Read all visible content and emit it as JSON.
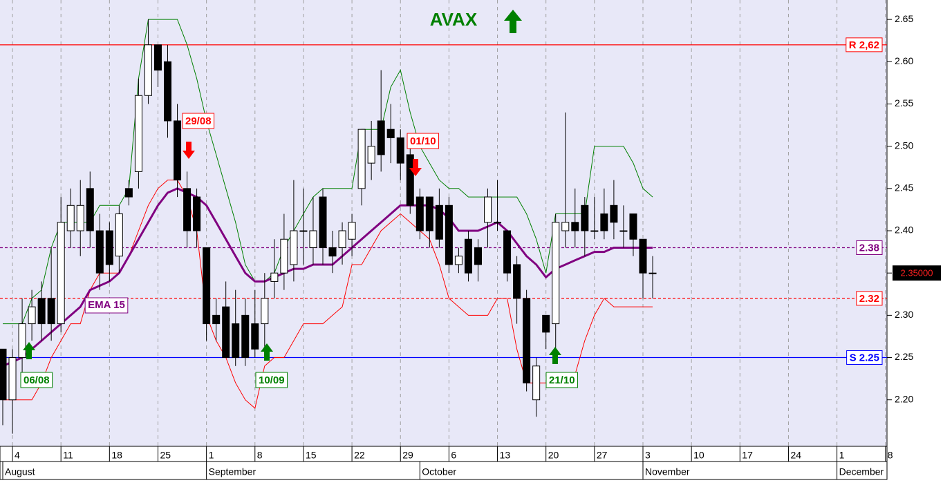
{
  "chart_data": {
    "type": "candlestick",
    "title": "AVAX",
    "xlim": [
      -0.285,
      91.16
    ],
    "ylim": [
      2.145,
      2.673
    ],
    "yticks": [
      {
        "value": 2.2,
        "label": "2.20"
      },
      2.25,
      {
        "value": 2.3,
        "label": "2.30"
      },
      2.35,
      {
        "value": 2.4,
        "label": "2.40"
      },
      2.45,
      {
        "value": 2.5,
        "label": "2.50"
      },
      2.55,
      {
        "value": 2.6,
        "label": "2.60"
      },
      2.65
    ],
    "xticks": [
      {
        "value": 1,
        "label": "4"
      },
      {
        "value": 6,
        "label": "11"
      },
      {
        "value": 11,
        "label": "18"
      },
      {
        "value": 16,
        "label": "25"
      },
      {
        "value": 21,
        "label": "1"
      },
      {
        "value": 26,
        "label": "8"
      },
      {
        "value": 31,
        "label": "15"
      },
      {
        "value": 36,
        "label": "22"
      },
      {
        "value": 41,
        "label": "29"
      },
      {
        "value": 46,
        "label": "6"
      },
      {
        "value": 51,
        "label": "13"
      },
      {
        "value": 56,
        "label": "20"
      },
      {
        "value": 61,
        "label": "27"
      },
      {
        "value": 66,
        "label": "3"
      },
      {
        "value": 71,
        "label": "10"
      },
      {
        "value": 76,
        "label": "17"
      },
      {
        "value": 81,
        "label": "24"
      },
      {
        "value": 86,
        "label": "1"
      },
      {
        "value": 91,
        "label": "8"
      }
    ],
    "month_ticks": [
      {
        "value": 0,
        "label": "August"
      },
      {
        "value": 21,
        "label": "September"
      },
      {
        "value": 43,
        "label": "October"
      },
      {
        "value": 66,
        "label": "November"
      },
      {
        "value": 86,
        "label": "December"
      }
    ],
    "grid": true,
    "x": [
      0,
      1,
      2,
      3,
      4,
      5,
      6,
      7,
      8,
      9,
      10,
      11,
      12,
      13,
      14,
      15,
      16,
      17,
      18,
      19,
      20,
      21,
      22,
      23,
      24,
      25,
      26,
      27,
      28,
      29,
      30,
      31,
      32,
      33,
      34,
      35,
      36,
      37,
      38,
      39,
      40,
      41,
      42,
      43,
      44,
      45,
      46,
      47,
      48,
      49,
      50,
      51,
      52,
      53,
      54,
      55,
      56,
      57,
      58,
      59,
      60,
      61,
      62,
      63,
      64,
      65,
      66,
      67
    ],
    "open": [
      2.26,
      2.2,
      2.25,
      2.29,
      2.32,
      2.32,
      2.29,
      2.4,
      2.4,
      2.45,
      2.4,
      2.4,
      2.37,
      2.45,
      2.47,
      2.56,
      2.62,
      2.6,
      2.53,
      2.45,
      2.44,
      2.38,
      2.3,
      2.31,
      2.29,
      2.3,
      2.29,
      2.29,
      2.34,
      2.35,
      2.36,
      2.4,
      2.38,
      2.44,
      2.38,
      2.38,
      2.39,
      2.45,
      2.48,
      2.53,
      2.52,
      2.51,
      2.49,
      2.44,
      2.44,
      2.43,
      2.43,
      2.36,
      2.39,
      2.38,
      2.41,
      2.41,
      2.4,
      2.36,
      2.32,
      2.2,
      2.3,
      2.29,
      2.4,
      2.41,
      2.43,
      2.4,
      2.42,
      2.43,
      2.4,
      2.42,
      2.39,
      2.35
    ],
    "high": [
      2.26,
      2.26,
      2.32,
      2.33,
      2.34,
      2.38,
      2.44,
      2.45,
      2.46,
      2.47,
      2.42,
      2.41,
      2.43,
      2.46,
      2.58,
      2.65,
      2.62,
      2.62,
      2.55,
      2.47,
      2.45,
      2.38,
      2.32,
      2.34,
      2.33,
      2.32,
      2.33,
      2.35,
      2.39,
      2.42,
      2.46,
      2.45,
      2.44,
      2.45,
      2.4,
      2.41,
      2.42,
      2.52,
      2.53,
      2.59,
      2.55,
      2.52,
      2.51,
      2.45,
      2.44,
      2.45,
      2.44,
      2.38,
      2.4,
      2.39,
      2.45,
      2.46,
      2.4,
      2.37,
      2.33,
      2.25,
      2.3,
      2.42,
      2.54,
      2.45,
      2.44,
      2.44,
      2.45,
      2.46,
      2.43,
      2.42,
      2.39,
      2.37
    ],
    "low": [
      2.17,
      2.16,
      2.23,
      2.27,
      2.27,
      2.27,
      2.28,
      2.38,
      2.37,
      2.38,
      2.33,
      2.34,
      2.35,
      2.43,
      2.45,
      2.55,
      2.57,
      2.51,
      2.44,
      2.38,
      2.38,
      2.27,
      2.27,
      2.25,
      2.24,
      2.24,
      2.25,
      2.26,
      2.32,
      2.33,
      2.34,
      2.36,
      2.36,
      2.36,
      2.35,
      2.36,
      2.37,
      2.43,
      2.46,
      2.47,
      2.48,
      2.46,
      2.42,
      2.39,
      2.38,
      2.38,
      2.35,
      2.35,
      2.34,
      2.34,
      2.38,
      2.4,
      2.34,
      2.29,
      2.21,
      2.18,
      2.26,
      2.25,
      2.38,
      2.38,
      2.37,
      2.39,
      2.39,
      2.39,
      2.38,
      2.37,
      2.32,
      2.32
    ],
    "close": [
      2.2,
      2.25,
      2.29,
      2.31,
      2.29,
      2.29,
      2.41,
      2.43,
      2.43,
      2.4,
      2.35,
      2.36,
      2.42,
      2.44,
      2.56,
      2.62,
      2.59,
      2.53,
      2.46,
      2.4,
      2.4,
      2.29,
      2.29,
      2.25,
      2.25,
      2.25,
      2.26,
      2.32,
      2.35,
      2.39,
      2.4,
      2.4,
      2.4,
      2.38,
      2.37,
      2.4,
      2.41,
      2.52,
      2.5,
      2.49,
      2.51,
      2.48,
      2.43,
      2.4,
      2.4,
      2.39,
      2.36,
      2.37,
      2.35,
      2.36,
      2.44,
      2.41,
      2.35,
      2.32,
      2.22,
      2.24,
      2.28,
      2.41,
      2.41,
      2.4,
      2.4,
      2.4,
      2.4,
      2.41,
      2.4,
      2.39,
      2.35,
      2.35
    ],
    "series": [
      {
        "name": "EMA 15",
        "color": "#800080",
        "values": [
          2.24,
          2.245,
          2.25,
          2.26,
          2.27,
          2.28,
          2.29,
          2.3,
          2.31,
          2.33,
          2.335,
          2.34,
          2.35,
          2.37,
          2.39,
          2.41,
          2.43,
          2.445,
          2.45,
          2.445,
          2.44,
          2.43,
          2.41,
          2.39,
          2.37,
          2.35,
          2.34,
          2.34,
          2.345,
          2.35,
          2.355,
          2.355,
          2.36,
          2.36,
          2.36,
          2.37,
          2.38,
          2.39,
          2.4,
          2.41,
          2.42,
          2.43,
          2.43,
          2.43,
          2.43,
          2.425,
          2.415,
          2.4,
          2.4,
          2.4,
          2.405,
          2.41,
          2.4,
          2.385,
          2.37,
          2.36,
          2.345,
          2.355,
          2.36,
          2.365,
          2.37,
          2.375,
          2.375,
          2.38,
          2.38,
          2.38,
          2.38,
          2.38
        ]
      },
      {
        "color": "#008000",
        "values": [
          2.29,
          2.29,
          2.29,
          2.32,
          2.33,
          2.38,
          2.41,
          2.41,
          2.41,
          2.41,
          2.43,
          2.43,
          2.43,
          2.45,
          2.58,
          2.65,
          2.65,
          2.65,
          2.65,
          2.62,
          2.58,
          2.53,
          2.49,
          2.45,
          2.41,
          2.36,
          2.34,
          2.34,
          2.35,
          2.38,
          2.4,
          2.42,
          2.44,
          2.45,
          2.45,
          2.45,
          2.45,
          2.52,
          2.52,
          2.52,
          2.57,
          2.59,
          2.54,
          2.5,
          2.48,
          2.46,
          2.45,
          2.45,
          2.44,
          2.44,
          2.44,
          2.44,
          2.44,
          2.44,
          2.42,
          2.39,
          2.35,
          2.42,
          2.42,
          2.42,
          2.42,
          2.5,
          2.5,
          2.5,
          2.5,
          2.48,
          2.45,
          2.44
        ]
      },
      {
        "color": "#ff0000",
        "values": [
          2.2,
          2.2,
          2.2,
          2.2,
          2.22,
          2.25,
          2.27,
          2.29,
          2.29,
          2.33,
          2.35,
          2.35,
          2.35,
          2.37,
          2.4,
          2.43,
          2.45,
          2.46,
          2.46,
          2.44,
          2.4,
          2.3,
          2.27,
          2.25,
          2.22,
          2.2,
          2.19,
          2.24,
          2.25,
          2.25,
          2.27,
          2.29,
          2.29,
          2.29,
          2.3,
          2.31,
          2.36,
          2.36,
          2.38,
          2.4,
          2.41,
          2.42,
          2.41,
          2.4,
          2.39,
          2.36,
          2.32,
          2.31,
          2.3,
          2.3,
          2.3,
          2.32,
          2.32,
          2.26,
          2.22,
          2.22,
          2.22,
          2.22,
          2.22,
          2.23,
          2.27,
          2.3,
          2.32,
          2.31,
          2.31,
          2.31,
          2.31,
          2.31
        ]
      }
    ],
    "levels": [
      {
        "value": 2.62,
        "label": "R 2,62",
        "color": "#ff0000",
        "style": "solid"
      },
      {
        "value": 2.38,
        "label": "2.38",
        "color": "#800080",
        "style": "dashed"
      },
      {
        "value": 2.32,
        "label": "2.32",
        "color": "#ff0000",
        "style": "dashed"
      },
      {
        "value": 2.25,
        "label": "S 2.25",
        "color": "#0000ff",
        "style": "solid"
      }
    ],
    "last_price": {
      "value": 2.35,
      "label": "2.35000"
    },
    "signals": [
      {
        "label": "06/08",
        "direction": "up",
        "color": "#008000"
      },
      {
        "label": "29/08",
        "direction": "down",
        "color": "#ff0000"
      },
      {
        "label": "10/09",
        "direction": "up",
        "color": "#008000"
      },
      {
        "label": "01/10",
        "direction": "down",
        "color": "#ff0000"
      },
      {
        "label": "21/10",
        "direction": "up",
        "color": "#008000"
      }
    ]
  }
}
